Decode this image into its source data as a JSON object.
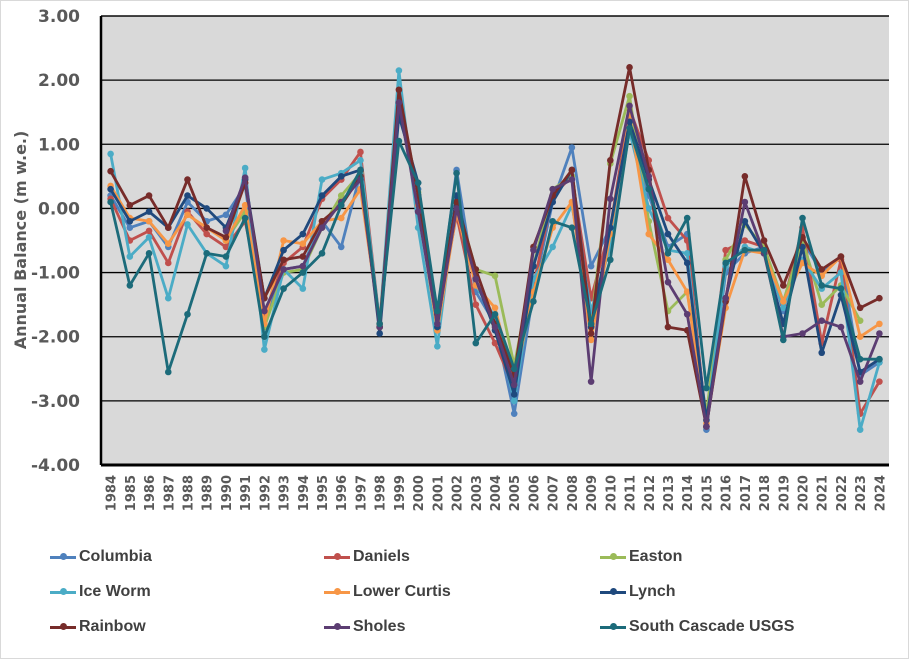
{
  "chart_data": {
    "type": "line",
    "title": "",
    "xlabel": "",
    "ylabel": "Annual Balance (m w.e.)",
    "ylim": [
      -4,
      3
    ],
    "yticks": [
      "3.00",
      "2.00",
      "1.00",
      "0.00",
      "-1.00",
      "-2.00",
      "-3.00",
      "-4.00"
    ],
    "ytick_values": [
      3,
      2,
      1,
      0,
      -1,
      -2,
      -3,
      -4
    ],
    "grid": true,
    "legend_position": "bottom",
    "x": [
      "1984",
      "1985",
      "1986",
      "1987",
      "1988",
      "1989",
      "1990",
      "1991",
      "1992",
      "1993",
      "1994",
      "1995",
      "1996",
      "1997",
      "1998",
      "1999",
      "2000",
      "2001",
      "2002",
      "2003",
      "2004",
      "2005",
      "2006",
      "2007",
      "2008",
      "2009",
      "2010",
      "2011",
      "2012",
      "2013",
      "2014",
      "2015",
      "2016",
      "2017",
      "2018",
      "2019",
      "2020",
      "2021",
      "2022",
      "2023",
      "2024"
    ],
    "series": [
      {
        "name": "Columbia",
        "color": "#4f81bd",
        "values": [
          0.2,
          -0.3,
          -0.2,
          -0.6,
          0.1,
          -0.2,
          -0.1,
          0.35,
          -1.75,
          -0.95,
          -0.9,
          -0.2,
          -0.6,
          0.55,
          -1.8,
          1.6,
          0.3,
          -1.7,
          0.6,
          -1.3,
          -1.8,
          -3.2,
          -1.3,
          0.1,
          0.95,
          -0.9,
          -0.3,
          1.2,
          0.2,
          -0.6,
          -0.4,
          -3.45,
          -1.0,
          -0.7,
          -0.6,
          -1.6,
          -0.5,
          -1.0,
          -0.75,
          -2.6,
          -2.4
        ]
      },
      {
        "name": "Daniels",
        "color": "#c0504d",
        "values": [
          0.15,
          -0.5,
          -0.35,
          -0.85,
          -0.05,
          -0.4,
          -0.6,
          -0.2,
          -1.65,
          -0.85,
          -0.6,
          0.15,
          0.45,
          0.88,
          -1.8,
          1.7,
          0.2,
          -1.7,
          -0.1,
          -1.5,
          -2.1,
          -2.8,
          -1.2,
          0.2,
          0.5,
          -1.4,
          -0.3,
          1.55,
          0.75,
          -0.15,
          -0.5,
          -3.4,
          -0.65,
          -0.5,
          -0.6,
          -1.5,
          -0.3,
          -2.1,
          -0.8,
          -3.2,
          -2.7
        ]
      },
      {
        "name": "Easton",
        "color": "#9bbb59",
        "values": [
          null,
          null,
          null,
          null,
          null,
          null,
          -0.5,
          -0.05,
          -1.85,
          -1.0,
          -0.95,
          -0.3,
          0.2,
          0.55,
          -1.85,
          1.75,
          0.25,
          -1.75,
          0.1,
          -0.95,
          -1.05,
          -2.45,
          -0.9,
          0.3,
          0.5,
          -1.8,
          0.7,
          1.75,
          -0.2,
          -1.6,
          -1.3,
          -3.2,
          -0.8,
          -0.25,
          -0.6,
          -1.45,
          -0.5,
          -1.5,
          -1.2,
          -1.75,
          null
        ]
      },
      {
        "name": "Ice Worm",
        "color": "#4bacc6",
        "values": [
          0.85,
          -0.75,
          -0.45,
          -1.4,
          -0.25,
          -0.7,
          -0.9,
          0.63,
          -2.2,
          -0.95,
          -1.25,
          0.45,
          0.55,
          0.75,
          -1.8,
          2.15,
          -0.3,
          -2.15,
          0.2,
          -1.2,
          -1.7,
          -3.0,
          -1.1,
          -0.6,
          0.05,
          -1.6,
          -0.6,
          1.2,
          0.0,
          -0.65,
          -0.7,
          -3.4,
          -0.9,
          -0.6,
          -0.7,
          -1.55,
          -0.8,
          -1.25,
          -1.0,
          -3.45,
          -2.4
        ]
      },
      {
        "name": "Lower Curtis",
        "color": "#f79646",
        "values": [
          0.35,
          -0.15,
          -0.2,
          -0.55,
          -0.1,
          -0.3,
          -0.5,
          0.05,
          -1.8,
          -0.5,
          -0.55,
          -0.2,
          -0.15,
          0.3,
          -1.8,
          1.65,
          0.05,
          -1.9,
          -0.05,
          -1.2,
          -1.55,
          -2.7,
          -1.3,
          -0.3,
          0.1,
          -2.05,
          -0.4,
          1.45,
          -0.4,
          -0.8,
          -1.3,
          -3.35,
          -1.55,
          -0.65,
          -0.7,
          -1.45,
          -0.85,
          -1.05,
          -0.75,
          -2.0,
          -1.8
        ]
      },
      {
        "name": "Lynch",
        "color": "#1f497d",
        "values": [
          0.3,
          -0.2,
          -0.05,
          -0.3,
          0.2,
          0.0,
          -0.3,
          0.45,
          -1.4,
          -0.65,
          -0.4,
          0.2,
          0.5,
          0.6,
          -1.95,
          1.45,
          0.4,
          -1.85,
          0.2,
          -1.1,
          -1.9,
          -2.9,
          -0.9,
          0.1,
          0.6,
          -1.85,
          -0.3,
          1.35,
          0.45,
          -0.4,
          -0.85,
          -3.3,
          -1.4,
          -0.2,
          -0.7,
          -1.8,
          -0.6,
          -2.25,
          -1.35,
          -2.55,
          -2.35
        ]
      },
      {
        "name": "Rainbow",
        "color": "#772c2a",
        "values": [
          0.58,
          0.05,
          0.2,
          -0.3,
          0.45,
          -0.3,
          -0.45,
          0.4,
          -1.4,
          -0.8,
          -0.75,
          -0.2,
          0.05,
          0.5,
          -1.85,
          1.85,
          0.2,
          -1.65,
          0.1,
          -0.95,
          -1.8,
          -2.6,
          -0.6,
          0.2,
          0.6,
          -1.95,
          0.75,
          2.2,
          0.6,
          -1.85,
          -1.9,
          -3.4,
          -1.45,
          0.5,
          -0.5,
          -1.2,
          -0.45,
          -0.95,
          -0.75,
          -1.55,
          -1.4
        ]
      },
      {
        "name": "Sholes",
        "color": "#5c3d72",
        "values": [
          null,
          null,
          null,
          null,
          null,
          null,
          -0.35,
          0.48,
          -1.6,
          -0.95,
          -0.9,
          -0.3,
          0.1,
          0.45,
          -1.85,
          1.65,
          -0.05,
          -1.8,
          0.0,
          -1.1,
          -1.85,
          -2.75,
          -0.65,
          0.3,
          0.45,
          -2.7,
          0.15,
          1.6,
          0.5,
          -1.15,
          -1.65,
          -3.4,
          -1.4,
          0.1,
          -0.7,
          -2.0,
          -1.95,
          -1.75,
          -1.85,
          -2.7,
          -1.95
        ]
      },
      {
        "name": "South Cascade USGS",
        "color": "#1c6b7a",
        "values": [
          0.1,
          -1.2,
          -0.7,
          -2.55,
          -1.65,
          -0.7,
          -0.75,
          -0.15,
          -2.0,
          -1.25,
          -1.0,
          -0.7,
          0.05,
          0.6,
          -1.8,
          1.05,
          0.4,
          -1.6,
          0.55,
          -2.1,
          -1.65,
          -2.5,
          -1.45,
          -0.2,
          -0.3,
          -1.8,
          -0.8,
          1.25,
          0.3,
          -0.7,
          -0.15,
          -2.8,
          -0.85,
          -0.65,
          -0.65,
          -2.05,
          -0.15,
          -1.2,
          -1.25,
          -2.35,
          -2.35
        ]
      }
    ]
  }
}
